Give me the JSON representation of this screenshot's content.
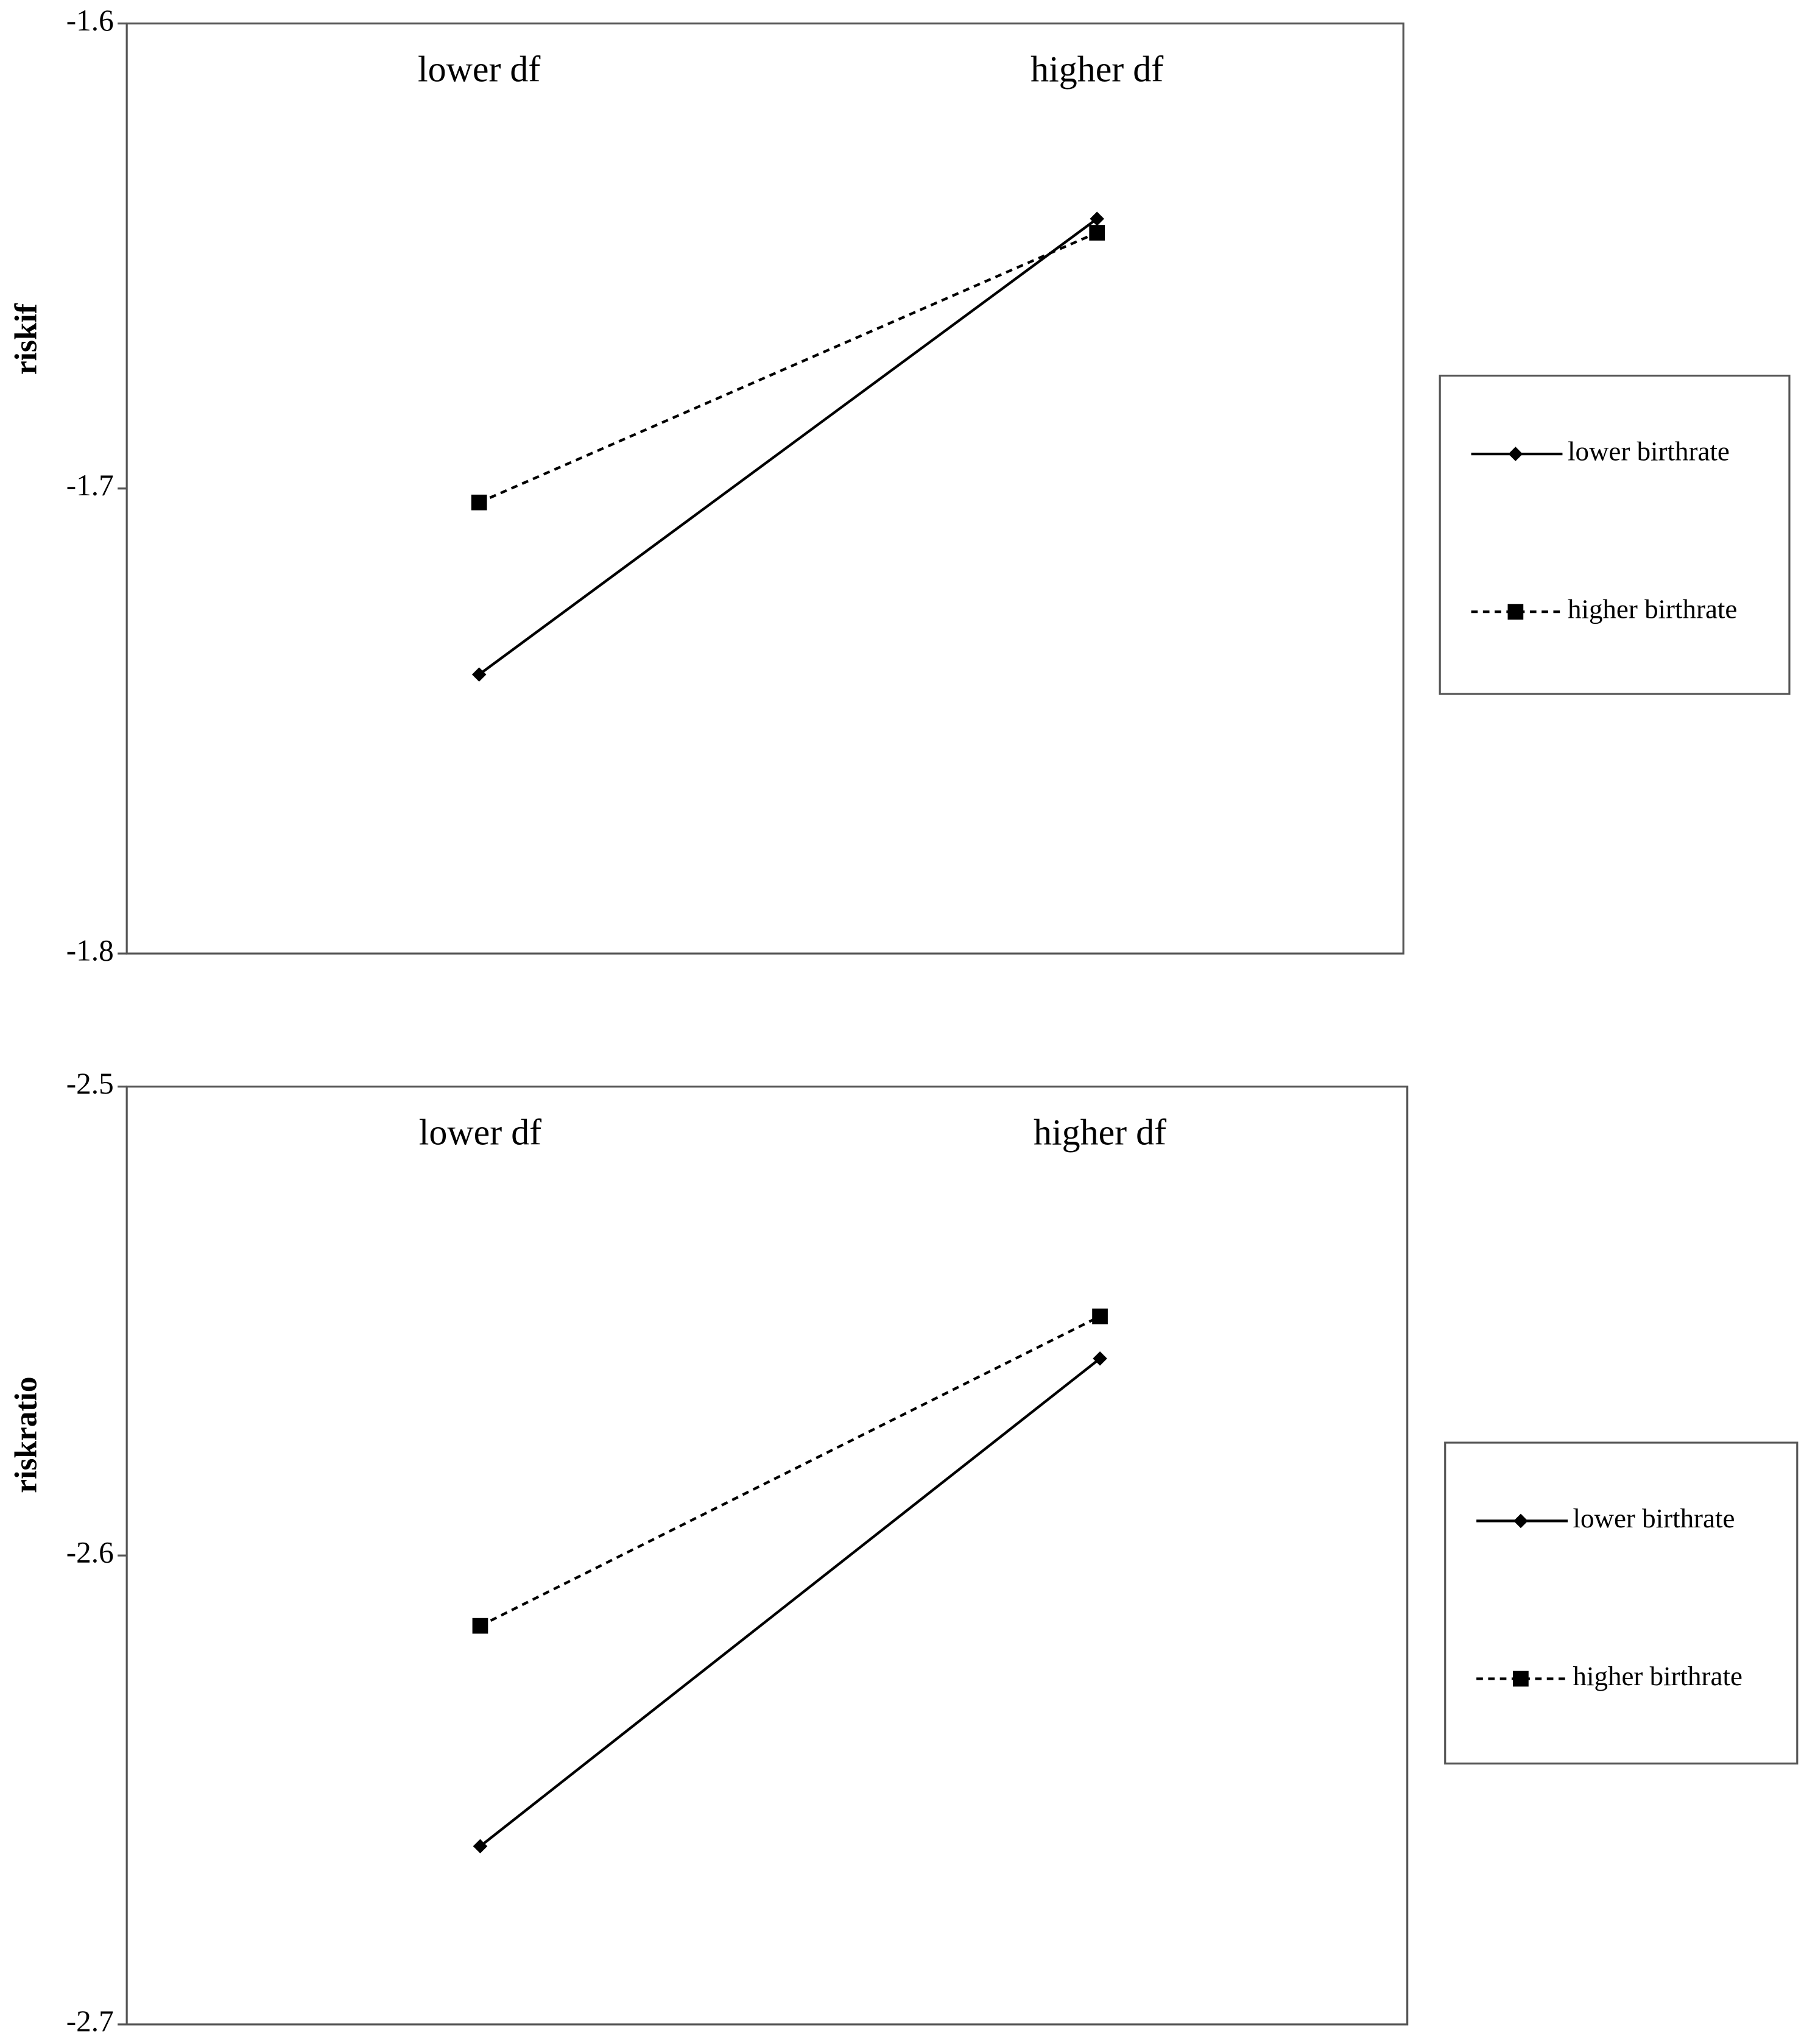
{
  "chart_data": [
    {
      "type": "line",
      "y_label": "riskif",
      "categories": [
        "lower df",
        "higher df"
      ],
      "series": [
        {
          "name": "lower birthrate",
          "color": "#000000",
          "line_style": "solid",
          "marker": "diamond",
          "values": [
            -1.74,
            -1.642
          ]
        },
        {
          "name": "higher birthrate",
          "color": "#000000",
          "line_style": "dashed",
          "marker": "square",
          "values": [
            -1.703,
            -1.645
          ]
        }
      ],
      "ylim": [
        -1.8,
        -1.6
      ],
      "yticks": [
        -1.6,
        -1.7,
        -1.8
      ],
      "grid": false
    },
    {
      "type": "line",
      "y_label": "riskratio",
      "categories": [
        "lower df",
        "higher df"
      ],
      "series": [
        {
          "name": "lower birthrate",
          "color": "#000000",
          "line_style": "solid",
          "marker": "diamond",
          "values": [
            -2.662,
            -2.558
          ]
        },
        {
          "name": "higher birthrate",
          "color": "#000000",
          "line_style": "dashed",
          "marker": "square",
          "values": [
            -2.615,
            -2.549
          ]
        }
      ],
      "ylim": [
        -2.7,
        -2.5
      ],
      "yticks": [
        -2.5,
        -2.6,
        -2.7
      ],
      "grid": false
    }
  ]
}
